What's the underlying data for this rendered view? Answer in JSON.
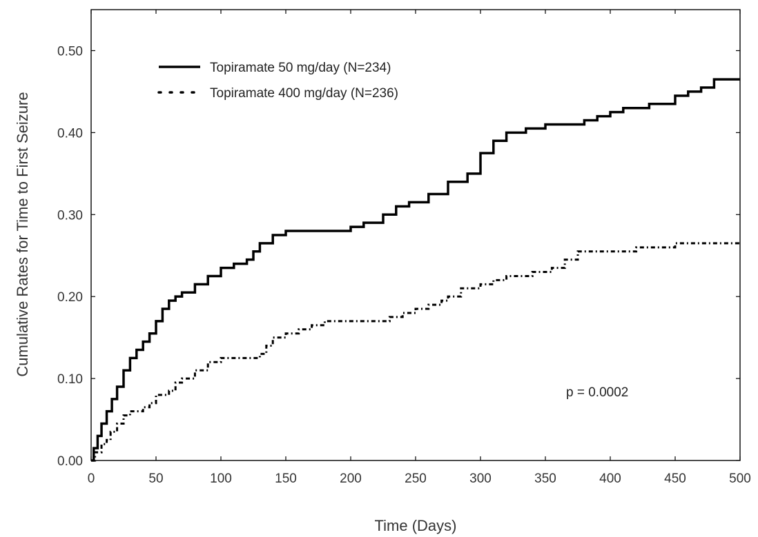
{
  "chart_data": {
    "type": "line",
    "title": "",
    "xlabel": "Time (Days)",
    "ylabel": "Cumulative Rates for Time to First Seizure",
    "xlim": [
      0,
      500
    ],
    "ylim": [
      0,
      0.55
    ],
    "x_ticks": [
      0,
      50,
      100,
      150,
      200,
      250,
      300,
      350,
      400,
      450,
      500
    ],
    "x_tick_labels": [
      "0",
      "50",
      "100",
      "150",
      "200",
      "250",
      "300",
      "350",
      "400",
      "450",
      "500"
    ],
    "y_ticks": [
      0,
      0.1,
      0.2,
      0.3,
      0.4,
      0.5
    ],
    "y_tick_labels": [
      "0.00",
      "0.10",
      "0.20",
      "0.30",
      "0.40",
      "0.50"
    ],
    "grid": false,
    "legend_position": "top-left",
    "annotation": "p = 0.0002",
    "series": [
      {
        "name": "Topiramate 50 mg/day (N=234)",
        "style": "solid",
        "color": "#000000",
        "x": [
          0,
          2,
          5,
          8,
          12,
          16,
          20,
          25,
          30,
          35,
          40,
          45,
          50,
          55,
          60,
          65,
          70,
          80,
          90,
          100,
          110,
          120,
          125,
          130,
          140,
          150,
          160,
          175,
          200,
          210,
          225,
          235,
          245,
          260,
          275,
          290,
          300,
          310,
          320,
          335,
          350,
          375,
          380,
          390,
          400,
          410,
          430,
          450,
          460,
          470,
          480,
          500
        ],
        "y": [
          0,
          0.015,
          0.03,
          0.045,
          0.06,
          0.075,
          0.09,
          0.11,
          0.125,
          0.135,
          0.145,
          0.155,
          0.17,
          0.185,
          0.195,
          0.2,
          0.205,
          0.215,
          0.225,
          0.235,
          0.24,
          0.245,
          0.255,
          0.265,
          0.275,
          0.28,
          0.28,
          0.28,
          0.285,
          0.29,
          0.3,
          0.31,
          0.315,
          0.325,
          0.34,
          0.35,
          0.375,
          0.39,
          0.4,
          0.405,
          0.41,
          0.41,
          0.415,
          0.42,
          0.425,
          0.43,
          0.435,
          0.445,
          0.45,
          0.455,
          0.465,
          0.465
        ]
      },
      {
        "name": "Topiramate 400 mg/day (N=236)",
        "style": "dotted",
        "color": "#000000",
        "x": [
          0,
          3,
          8,
          12,
          15,
          20,
          25,
          30,
          40,
          45,
          50,
          60,
          65,
          70,
          80,
          90,
          100,
          110,
          120,
          130,
          135,
          140,
          150,
          160,
          170,
          180,
          200,
          220,
          230,
          240,
          250,
          260,
          270,
          275,
          285,
          300,
          310,
          320,
          340,
          355,
          365,
          375,
          400,
          415,
          420,
          430,
          450,
          500
        ],
        "y": [
          0,
          0.01,
          0.02,
          0.025,
          0.035,
          0.045,
          0.055,
          0.06,
          0.065,
          0.07,
          0.08,
          0.085,
          0.095,
          0.1,
          0.11,
          0.12,
          0.125,
          0.125,
          0.125,
          0.13,
          0.14,
          0.15,
          0.155,
          0.16,
          0.165,
          0.17,
          0.17,
          0.17,
          0.175,
          0.18,
          0.185,
          0.19,
          0.195,
          0.2,
          0.21,
          0.215,
          0.22,
          0.225,
          0.23,
          0.235,
          0.245,
          0.255,
          0.255,
          0.255,
          0.26,
          0.26,
          0.265,
          0.265
        ]
      }
    ]
  }
}
